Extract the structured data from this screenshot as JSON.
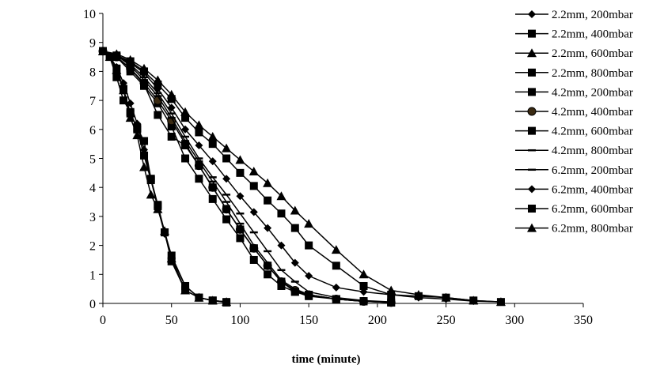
{
  "chart_data": {
    "type": "line",
    "title": "",
    "xlabel": "time (minute)",
    "ylabel": "",
    "xlim": [
      0,
      350
    ],
    "ylim": [
      0,
      10
    ],
    "xticks": [
      0,
      50,
      100,
      150,
      200,
      250,
      300,
      350
    ],
    "yticks": [
      0,
      1,
      2,
      3,
      4,
      5,
      6,
      7,
      8,
      9,
      10
    ],
    "grid": false,
    "legend": "right",
    "series": [
      {
        "name": "2.2mm, 200mbar",
        "marker": "diamond",
        "x": [
          0,
          5,
          10,
          15,
          20,
          25,
          30,
          35,
          40,
          45,
          50,
          60,
          70,
          80,
          90
        ],
        "y": [
          8.7,
          8.5,
          8.15,
          7.6,
          6.9,
          6.2,
          5.3,
          4.3,
          3.3,
          2.4,
          1.6,
          0.6,
          0.2,
          0.1,
          0.05
        ]
      },
      {
        "name": "2.2mm, 400mbar",
        "marker": "square",
        "x": [
          0,
          5,
          10,
          15,
          20,
          25,
          30,
          35,
          40,
          45,
          50,
          60,
          70,
          80,
          90
        ],
        "y": [
          8.7,
          8.5,
          8.1,
          7.4,
          6.55,
          6.05,
          5.6,
          4.3,
          3.4,
          2.45,
          1.65,
          0.6,
          0.2,
          0.1,
          0.05
        ]
      },
      {
        "name": "2.2mm, 600mbar",
        "marker": "triangle",
        "x": [
          0,
          5,
          10,
          15,
          20,
          25,
          30,
          35,
          40,
          45,
          50,
          60,
          70,
          80,
          90
        ],
        "y": [
          8.7,
          8.5,
          8.05,
          7.35,
          6.4,
          5.8,
          4.7,
          3.75,
          3.25,
          2.5,
          1.55,
          0.45,
          0.2,
          0.1,
          0.05
        ]
      },
      {
        "name": "2.2mm, 800mbar",
        "marker": "square",
        "x": [
          0,
          5,
          10,
          15,
          20,
          25,
          30,
          35,
          40,
          45,
          50,
          60,
          70,
          80,
          90
        ],
        "y": [
          8.7,
          8.5,
          7.8,
          7.0,
          6.6,
          6.0,
          5.1,
          4.25,
          3.35,
          2.45,
          1.45,
          0.45,
          0.2,
          0.1,
          0.03
        ]
      },
      {
        "name": "4.2mm, 200mbar",
        "marker": "square",
        "x": [
          0,
          10,
          20,
          30,
          40,
          50,
          60,
          70,
          80,
          90,
          100,
          110,
          120,
          130,
          140,
          150,
          170,
          190,
          210
        ],
        "y": [
          8.7,
          8.5,
          8.0,
          7.5,
          6.9,
          6.1,
          5.0,
          4.3,
          3.6,
          2.9,
          2.25,
          1.5,
          1.0,
          0.6,
          0.4,
          0.25,
          0.15,
          0.08,
          0.03
        ]
      },
      {
        "name": "4.2mm, 400mbar",
        "marker": "circle",
        "x": [
          0,
          10,
          20,
          30,
          40,
          50,
          60,
          70,
          80,
          90,
          100,
          110,
          120,
          130,
          140,
          150,
          170,
          190,
          210
        ],
        "y": [
          8.7,
          8.5,
          8.1,
          7.6,
          7.0,
          6.3,
          5.5,
          4.75,
          4.0,
          3.25,
          2.55,
          1.9,
          1.3,
          0.75,
          0.45,
          0.3,
          0.15,
          0.07,
          0.03
        ]
      },
      {
        "name": "4.2mm, 600mbar",
        "marker": "square",
        "x": [
          0,
          10,
          20,
          30,
          40,
          50,
          60,
          70,
          80,
          90,
          100,
          110,
          120,
          130,
          140,
          150,
          170,
          190,
          210
        ],
        "y": [
          8.7,
          8.5,
          8.1,
          7.55,
          6.5,
          5.75,
          5.45,
          4.75,
          4.0,
          3.25,
          2.55,
          1.9,
          1.3,
          0.75,
          0.4,
          0.3,
          0.15,
          0.07,
          0.03
        ]
      },
      {
        "name": "4.2mm, 800mbar",
        "marker": "dash",
        "x": [
          0,
          10,
          20,
          30,
          40,
          50,
          60,
          70,
          80,
          90,
          100,
          110,
          120,
          130,
          140,
          150,
          170,
          190,
          210
        ],
        "y": [
          8.7,
          8.55,
          8.2,
          7.7,
          7.15,
          6.4,
          5.6,
          4.9,
          4.2,
          3.5,
          2.75,
          2.0,
          1.4,
          0.8,
          0.5,
          0.3,
          0.15,
          0.07,
          0.03
        ]
      },
      {
        "name": "6.2mm, 200mbar",
        "marker": "dash",
        "x": [
          0,
          10,
          20,
          30,
          40,
          50,
          60,
          70,
          80,
          90,
          100,
          110,
          120,
          130,
          140,
          150,
          170,
          190,
          210
        ],
        "y": [
          8.7,
          8.55,
          8.25,
          7.8,
          7.25,
          6.55,
          5.75,
          5.0,
          4.35,
          3.75,
          3.1,
          2.45,
          1.8,
          1.15,
          0.75,
          0.4,
          0.2,
          0.1,
          0.05
        ]
      },
      {
        "name": "6.2mm, 400mbar",
        "marker": "diamond",
        "x": [
          0,
          10,
          20,
          30,
          40,
          50,
          60,
          70,
          80,
          90,
          100,
          110,
          120,
          130,
          140,
          150,
          170,
          190,
          210,
          230,
          250,
          270,
          290
        ],
        "y": [
          8.7,
          8.55,
          8.3,
          7.95,
          7.4,
          6.75,
          6.0,
          5.45,
          4.9,
          4.3,
          3.7,
          3.15,
          2.6,
          2.0,
          1.4,
          0.95,
          0.55,
          0.4,
          0.3,
          0.2,
          0.15,
          0.08,
          0.05
        ]
      },
      {
        "name": "6.2mm, 600mbar",
        "marker": "square",
        "x": [
          0,
          10,
          20,
          30,
          40,
          50,
          60,
          70,
          80,
          90,
          100,
          110,
          120,
          130,
          140,
          150,
          170,
          190,
          210,
          230,
          250,
          270,
          290
        ],
        "y": [
          8.7,
          8.55,
          8.35,
          8.0,
          7.55,
          7.05,
          6.4,
          5.9,
          5.5,
          5.0,
          4.5,
          4.05,
          3.55,
          3.1,
          2.6,
          2.0,
          1.3,
          0.6,
          0.3,
          0.25,
          0.2,
          0.1,
          0.05
        ]
      },
      {
        "name": "6.2mm, 800mbar",
        "marker": "triangle",
        "x": [
          0,
          10,
          20,
          30,
          40,
          50,
          60,
          70,
          80,
          90,
          100,
          110,
          120,
          130,
          140,
          150,
          170,
          190,
          210,
          230,
          250,
          270,
          290
        ],
        "y": [
          8.7,
          8.6,
          8.4,
          8.1,
          7.7,
          7.2,
          6.6,
          6.15,
          5.75,
          5.35,
          4.95,
          4.55,
          4.15,
          3.7,
          3.2,
          2.75,
          1.85,
          1.0,
          0.45,
          0.3,
          0.2,
          0.1,
          0.05
        ]
      }
    ]
  }
}
